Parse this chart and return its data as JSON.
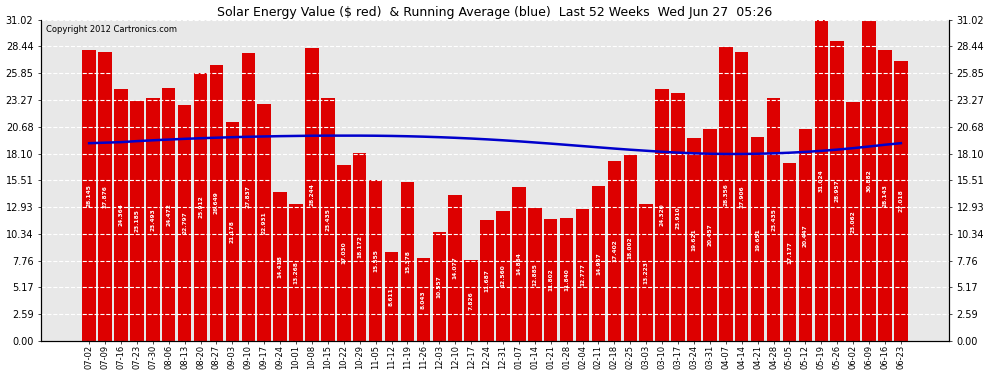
{
  "title": "Solar Energy Value ($ red)  & Running Average (blue)  Last 52 Weeks  Wed Jun 27  05:26",
  "copyright": "Copyright 2012 Cartronics.com",
  "bar_color": "#dd0000",
  "line_color": "#0000cc",
  "ylim": [
    0,
    31.02
  ],
  "yticks": [
    0.0,
    2.59,
    5.17,
    7.76,
    10.34,
    12.93,
    15.51,
    18.1,
    20.68,
    23.27,
    25.85,
    28.44,
    31.02
  ],
  "categories": [
    "07-02",
    "07-09",
    "07-16",
    "07-23",
    "07-30",
    "08-06",
    "08-13",
    "08-20",
    "08-27",
    "09-03",
    "09-10",
    "09-17",
    "09-24",
    "10-01",
    "10-08",
    "10-15",
    "10-22",
    "10-29",
    "11-05",
    "11-12",
    "11-19",
    "11-26",
    "12-03",
    "12-10",
    "12-17",
    "12-24",
    "12-31",
    "01-07",
    "01-14",
    "01-21",
    "01-28",
    "02-04",
    "02-11",
    "02-18",
    "02-25",
    "03-03",
    "03-10",
    "03-17",
    "03-24",
    "03-31",
    "04-07",
    "04-14",
    "04-21",
    "04-28",
    "05-05",
    "05-12",
    "05-19",
    "05-26",
    "06-02",
    "06-09",
    "06-16",
    "06-23"
  ],
  "values": [
    28.145,
    27.876,
    24.364,
    23.185,
    23.493,
    24.472,
    22.797,
    25.912,
    26.649,
    21.178,
    27.837,
    22.931,
    14.418,
    13.268,
    28.244,
    23.435,
    17.03,
    18.172,
    15.555,
    8.611,
    15.378,
    8.043,
    10.557,
    14.077,
    7.826,
    11.687,
    12.56,
    14.864,
    12.885,
    11.802,
    11.84,
    12.777,
    14.957,
    17.402,
    18.002,
    13.223,
    24.32,
    23.91,
    19.621,
    20.457,
    28.356,
    27.906,
    19.651,
    23.435,
    17.177,
    20.447,
    31.024,
    28.957,
    23.062,
    30.882,
    28.143,
    27.018
  ],
  "running_avg": [
    19.1,
    19.15,
    19.2,
    19.3,
    19.38,
    19.45,
    19.52,
    19.58,
    19.63,
    19.68,
    19.72,
    19.75,
    19.78,
    19.8,
    19.82,
    19.83,
    19.83,
    19.83,
    19.82,
    19.8,
    19.77,
    19.73,
    19.68,
    19.62,
    19.55,
    19.47,
    19.38,
    19.28,
    19.17,
    19.06,
    18.94,
    18.82,
    18.7,
    18.58,
    18.47,
    18.37,
    18.27,
    18.19,
    18.12,
    18.08,
    18.06,
    18.06,
    18.08,
    18.12,
    18.18,
    18.26,
    18.36,
    18.48,
    18.62,
    18.78,
    18.95,
    19.1
  ]
}
